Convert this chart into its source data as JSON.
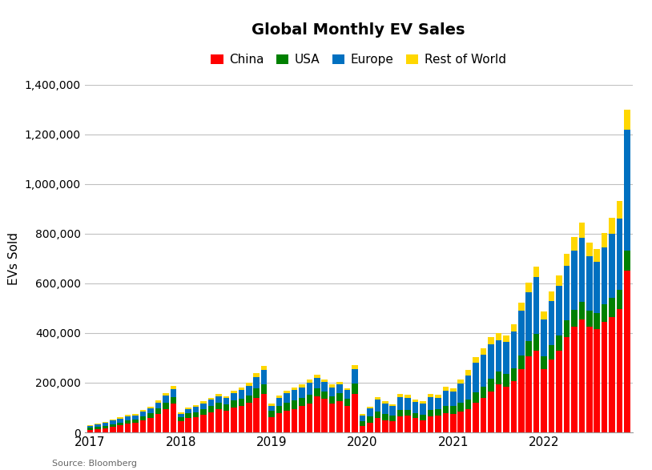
{
  "title": "Global Monthly EV Sales",
  "ylabel": "EVs Sold",
  "source": "Source: Bloomberg",
  "colors": {
    "China": "#FF0000",
    "USA": "#008000",
    "Europe": "#0070C0",
    "Rest of World": "#FFD700"
  },
  "legend_labels": [
    "China",
    "USA",
    "Europe",
    "Rest of World"
  ],
  "china": [
    11000,
    14000,
    17000,
    22000,
    28000,
    35000,
    38000,
    50000,
    58000,
    75000,
    95000,
    115000,
    45000,
    58000,
    62000,
    72000,
    82000,
    92000,
    88000,
    100000,
    108000,
    118000,
    140000,
    155000,
    60000,
    78000,
    88000,
    95000,
    105000,
    115000,
    145000,
    135000,
    115000,
    125000,
    108000,
    155000,
    25000,
    40000,
    58000,
    50000,
    45000,
    65000,
    68000,
    58000,
    50000,
    65000,
    68000,
    78000,
    75000,
    85000,
    95000,
    120000,
    138000,
    165000,
    195000,
    185000,
    205000,
    255000,
    305000,
    330000,
    255000,
    295000,
    330000,
    385000,
    425000,
    455000,
    425000,
    415000,
    445000,
    465000,
    495000,
    650000
  ],
  "usa": [
    7000,
    8000,
    9000,
    10000,
    11000,
    13000,
    14000,
    16000,
    18000,
    21000,
    24000,
    26000,
    16000,
    18000,
    20000,
    22000,
    23000,
    26000,
    24000,
    28000,
    29000,
    31000,
    36000,
    38000,
    26000,
    28000,
    31000,
    33000,
    34000,
    36000,
    33000,
    29000,
    31000,
    33000,
    29000,
    41000,
    21000,
    23000,
    25000,
    23000,
    22000,
    26000,
    23000,
    21000,
    22000,
    25000,
    24000,
    29000,
    31000,
    34000,
    37000,
    41000,
    46000,
    51000,
    49000,
    51000,
    53000,
    56000,
    61000,
    66000,
    51000,
    56000,
    61000,
    66000,
    69000,
    71000,
    66000,
    64000,
    71000,
    76000,
    79000,
    81000
  ],
  "europe": [
    9000,
    11000,
    13000,
    15000,
    17000,
    18000,
    16000,
    18000,
    20000,
    23000,
    28000,
    32000,
    14000,
    18000,
    20000,
    23000,
    26000,
    28000,
    26000,
    30000,
    33000,
    38000,
    48000,
    58000,
    22000,
    32000,
    38000,
    42000,
    43000,
    48000,
    42000,
    38000,
    36000,
    36000,
    33000,
    58000,
    23000,
    33000,
    48000,
    43000,
    38000,
    52000,
    48000,
    43000,
    43000,
    52000,
    48000,
    62000,
    58000,
    78000,
    98000,
    118000,
    128000,
    138000,
    128000,
    128000,
    148000,
    178000,
    198000,
    228000,
    148000,
    178000,
    198000,
    218000,
    238000,
    258000,
    218000,
    208000,
    228000,
    258000,
    288000,
    488000
  ],
  "row": [
    2000,
    2500,
    3000,
    3500,
    4500,
    5500,
    5500,
    6500,
    7500,
    9000,
    11000,
    14000,
    4500,
    5500,
    6500,
    7500,
    8500,
    9500,
    8500,
    9500,
    10500,
    12000,
    15000,
    17000,
    7500,
    9500,
    11000,
    12000,
    12000,
    13000,
    12000,
    11000,
    10000,
    10000,
    9000,
    17000,
    6500,
    8500,
    11000,
    10000,
    9500,
    12000,
    11000,
    10000,
    9500,
    12000,
    11000,
    14000,
    14000,
    17000,
    21000,
    24000,
    27000,
    29000,
    27000,
    27000,
    29000,
    34000,
    39000,
    44000,
    34000,
    39000,
    44000,
    49000,
    54000,
    59000,
    54000,
    51000,
    59000,
    64000,
    69000,
    79000
  ],
  "ylim": [
    0,
    1400000
  ],
  "yticks": [
    0,
    200000,
    400000,
    600000,
    800000,
    1000000,
    1200000,
    1400000
  ],
  "background_color": "#FFFFFF",
  "grid_color": "#C0C0C0"
}
